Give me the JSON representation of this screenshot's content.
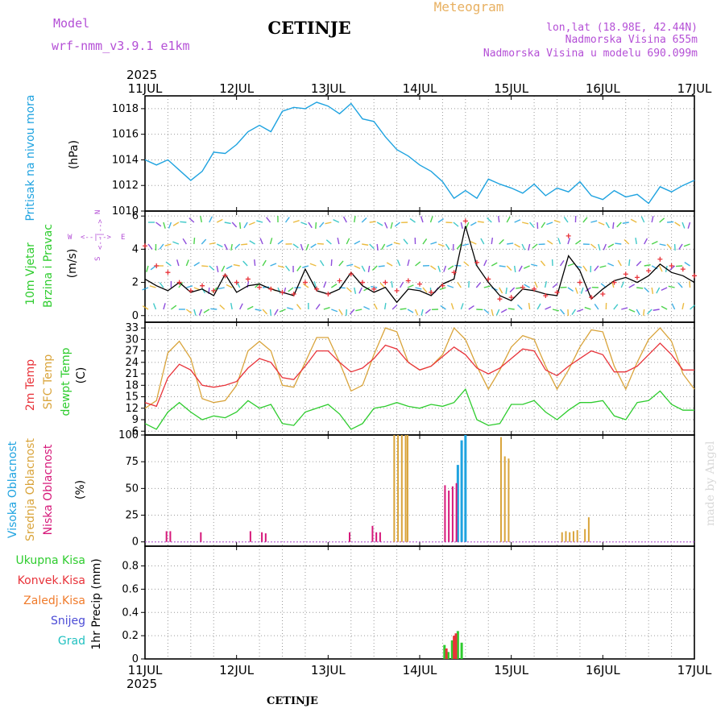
{
  "header": {
    "model_label": "Model",
    "model_name": "wrf-nmm_v3.9.1 e1km",
    "station": "CETINJE",
    "product": "Meteogram",
    "lonlat": "lon,lat (18.98E, 42.44N)",
    "elevation": "Nadmorska Visina 655m",
    "model_elevation": "Nadmorska Visina u modelu 690.099m",
    "footer_station": "CETINJE",
    "watermark": "made by Angel"
  },
  "time_axis": {
    "year": "2025",
    "ticks": [
      "11JUL",
      "12JUL",
      "13JUL",
      "14JUL",
      "15JUL",
      "16JUL",
      "17JUL"
    ]
  },
  "colors": {
    "pressure": "#1fa3e0",
    "wind_speed": "#000000",
    "gust": "#e8333a",
    "temp2m": "#e8333a",
    "sfc_temp": "#d9a43b",
    "dewpt": "#2ecc2e",
    "cloud_high": "#1fa3e0",
    "cloud_mid": "#d9a43b",
    "cloud_low": "#d6187a",
    "precip_total": "#2ecc2e",
    "precip_conv": "#e8333a",
    "precip_grid": "#f07b2b",
    "snow": "#4b4bd6",
    "graupel": "#20c0c0",
    "header_purple": "#b44fd6",
    "header_orange": "#e8b060"
  },
  "panels": {
    "pressure": {
      "label": "Pritisak na nivou mora",
      "unit": "(hPa)",
      "yticks": [
        "1010",
        "1012",
        "1014",
        "1016",
        "1018"
      ]
    },
    "wind": {
      "label1": "10m Vjetar",
      "label2": "Brzina i Pravac",
      "unit": "(m/s)",
      "yticks": [
        "0",
        "2",
        "4",
        "6"
      ],
      "compass": {
        "w": "W",
        "e": "E",
        "n": "N",
        "s": "S",
        "arrow_h": "<--|-->",
        "arrow_v": "<--|-->"
      }
    },
    "temp": {
      "label1": "2m Temp",
      "label2": "SFC Temp",
      "label3": "dewpt Temp",
      "unit": "(C)",
      "yticks": [
        "6",
        "9",
        "12",
        "15",
        "18",
        "21",
        "24",
        "27",
        "30",
        "33"
      ]
    },
    "cloud": {
      "label1": "Visoka Oblacnost",
      "label2": "Srednja Oblacnost",
      "label3": "Niska Oblacnost",
      "unit": "(%)",
      "yticks": [
        "0",
        "25",
        "50",
        "75",
        "100"
      ]
    },
    "precip": {
      "label": "1hr Precip (mm)",
      "yticks": [
        "0",
        "0.2",
        "0.4",
        "0.6",
        "0.8"
      ],
      "legend": [
        "Ukupna Kisa",
        "Konvek.Kisa",
        "Zaledj.Kisa",
        "Snijeg",
        "Grad"
      ]
    }
  },
  "chart_data": [
    {
      "type": "line",
      "title": "Pritisak na nivou mora",
      "ylabel": "(hPa)",
      "ylim": [
        1010,
        1019
      ],
      "x_hours": [
        0,
        3,
        6,
        9,
        12,
        15,
        18,
        21,
        24,
        27,
        30,
        33,
        36,
        39,
        42,
        45,
        48,
        51,
        54,
        57,
        60,
        63,
        66,
        69,
        72,
        75,
        78,
        81,
        84,
        87,
        90,
        93,
        96,
        99,
        102,
        105,
        108,
        111,
        114,
        117,
        120,
        123,
        126,
        129,
        132,
        135,
        138,
        141,
        144
      ],
      "series": [
        {
          "name": "pressure",
          "values": [
            1014.0,
            1013.6,
            1014.0,
            1013.2,
            1012.4,
            1013.1,
            1014.6,
            1014.5,
            1015.2,
            1016.2,
            1016.7,
            1016.2,
            1017.8,
            1018.1,
            1018.0,
            1018.5,
            1018.2,
            1017.6,
            1018.4,
            1017.2,
            1017.0,
            1015.8,
            1014.8,
            1014.3,
            1013.6,
            1013.1,
            1012.3,
            1011.0,
            1011.6,
            1011.0,
            1012.5,
            1012.1,
            1011.8,
            1011.4,
            1012.1,
            1011.2,
            1011.8,
            1011.5,
            1012.3,
            1011.2,
            1010.9,
            1011.6,
            1011.1,
            1011.3,
            1010.6,
            1011.9,
            1011.5,
            1012.0,
            1012.4
          ]
        }
      ]
    },
    {
      "type": "line",
      "title": "10m Vjetar",
      "ylabel": "(m/s)",
      "ylim": [
        -0.4,
        6.3
      ],
      "x_hours": [
        0,
        3,
        6,
        9,
        12,
        15,
        18,
        21,
        24,
        27,
        30,
        33,
        36,
        39,
        42,
        45,
        48,
        51,
        54,
        57,
        60,
        63,
        66,
        69,
        72,
        75,
        78,
        81,
        84,
        87,
        90,
        93,
        96,
        99,
        102,
        105,
        108,
        111,
        114,
        117,
        120,
        123,
        126,
        129,
        132,
        135,
        138,
        141,
        144
      ],
      "series": [
        {
          "name": "speed",
          "values": [
            2.2,
            1.8,
            1.5,
            2.0,
            1.4,
            1.6,
            1.2,
            2.5,
            1.4,
            1.8,
            1.9,
            1.6,
            1.4,
            1.2,
            2.8,
            1.5,
            1.3,
            1.6,
            2.6,
            1.8,
            1.4,
            1.7,
            0.8,
            1.6,
            1.5,
            1.2,
            1.9,
            2.2,
            5.4,
            3.0,
            2.0,
            1.2,
            0.9,
            1.6,
            1.5,
            1.3,
            1.2,
            3.6,
            2.7,
            1.0,
            1.6,
            2.1,
            2.3,
            2.0,
            2.4,
            3.1,
            2.6,
            2.4,
            2.0
          ]
        },
        {
          "name": "gust",
          "values": [
            4.2,
            3.0,
            2.6,
            2.0,
            1.5,
            1.8,
            1.5,
            2.4,
            2.0,
            2.2,
            1.7,
            1.6,
            1.4,
            1.3,
            2.0,
            1.6,
            1.3,
            2.1,
            2.5,
            2.0,
            1.6,
            2.0,
            1.5,
            2.1,
            1.9,
            1.4,
            1.8,
            2.6,
            5.7,
            3.2,
            2.2,
            1.0,
            1.1,
            1.7,
            1.6,
            1.2,
            1.4,
            4.8,
            2.0,
            1.1,
            1.3,
            2.0,
            2.5,
            2.3,
            2.7,
            3.4,
            3.0,
            2.8,
            2.4
          ]
        }
      ]
    },
    {
      "type": "line",
      "title": "Temp",
      "ylabel": "(C)",
      "ylim": [
        5,
        34.5
      ],
      "x_hours": [
        0,
        3,
        6,
        9,
        12,
        15,
        18,
        21,
        24,
        27,
        30,
        33,
        36,
        39,
        42,
        45,
        48,
        51,
        54,
        57,
        60,
        63,
        66,
        69,
        72,
        75,
        78,
        81,
        84,
        87,
        90,
        93,
        96,
        99,
        102,
        105,
        108,
        111,
        114,
        117,
        120,
        123,
        126,
        129,
        132,
        135,
        138,
        141,
        144
      ],
      "series": [
        {
          "name": "2m Temp",
          "values": [
            13.5,
            12.5,
            20.0,
            23.5,
            22.0,
            18.0,
            17.5,
            18.0,
            19.0,
            22.5,
            25.0,
            24.0,
            20.0,
            19.5,
            23.0,
            27.0,
            27.0,
            24.0,
            21.5,
            22.5,
            25.0,
            28.5,
            27.5,
            24.0,
            22.0,
            23.0,
            25.5,
            28.0,
            26.0,
            22.5,
            21.0,
            22.5,
            25.0,
            27.5,
            27.0,
            22.0,
            20.5,
            23.0,
            25.0,
            27.0,
            26.0,
            21.5,
            21.5,
            23.0,
            26.0,
            29.0,
            26.0,
            22.0,
            22.0
          ]
        },
        {
          "name": "SFC Temp",
          "values": [
            12.0,
            14.0,
            26.5,
            29.5,
            25.0,
            14.5,
            13.5,
            14.0,
            18.0,
            27.0,
            29.5,
            27.0,
            18.0,
            17.5,
            24.0,
            30.5,
            30.5,
            24.0,
            16.5,
            18.0,
            26.0,
            33.0,
            32.0,
            24.0,
            22.0,
            23.0,
            26.0,
            33.0,
            30.0,
            23.0,
            17.0,
            22.0,
            28.0,
            31.0,
            30.0,
            23.0,
            17.0,
            22.0,
            28.0,
            32.5,
            32.0,
            23.0,
            17.0,
            24.0,
            30.0,
            33.0,
            29.5,
            21.0,
            17.0
          ]
        },
        {
          "name": "dewpt Temp",
          "values": [
            8.0,
            6.5,
            11.0,
            13.5,
            11.0,
            9.0,
            10.0,
            9.5,
            11.0,
            14.0,
            12.0,
            13.0,
            8.0,
            7.5,
            11.0,
            12.0,
            13.0,
            10.5,
            6.5,
            8.0,
            12.0,
            12.5,
            13.5,
            12.5,
            12.0,
            13.0,
            12.5,
            13.5,
            17.0,
            9.0,
            7.5,
            8.0,
            13.0,
            13.0,
            14.0,
            11.0,
            9.0,
            11.5,
            13.5,
            13.5,
            14.0,
            10.0,
            9.0,
            13.5,
            14.0,
            16.5,
            13.0,
            11.5,
            11.5
          ]
        }
      ]
    },
    {
      "type": "bar",
      "title": "Oblacnost",
      "ylabel": "(%)",
      "ylim": [
        -4,
        100
      ],
      "series": [
        {
          "name": "Visoka Oblacnost",
          "x_hours": [
            82,
            83,
            84
          ],
          "values": [
            72,
            95,
            100
          ]
        },
        {
          "name": "Srednja Oblacnost",
          "x_hours": [
            65,
            66,
            67,
            68,
            68.5,
            93,
            94,
            95,
            109,
            110,
            111,
            112,
            113,
            115,
            116
          ],
          "values": [
            100,
            100,
            100,
            100,
            100,
            98,
            80,
            78,
            9,
            10,
            9,
            10,
            11,
            12,
            23
          ]
        },
        {
          "name": "Niska Oblacnost",
          "x_hours": [
            5,
            6,
            14,
            27,
            30,
            31,
            53,
            59,
            60,
            61,
            78,
            79,
            80,
            81
          ],
          "values": [
            10,
            10,
            9,
            10,
            9,
            8,
            9,
            15,
            9,
            9,
            53,
            48,
            52,
            55
          ]
        }
      ]
    },
    {
      "type": "bar",
      "title": "1hr Precip",
      "ylabel": "(mm)",
      "ylim": [
        0,
        0.97
      ],
      "series": [
        {
          "name": "Ukupna Kisa",
          "x_hours": [
            78.5,
            79.5,
            80.5,
            82,
            83
          ],
          "values": [
            0.12,
            0.06,
            0.16,
            0.24,
            0.14
          ]
        },
        {
          "name": "Konvek.Kisa",
          "x_hours": [
            79,
            81,
            81.5
          ],
          "values": [
            0.09,
            0.2,
            0.22
          ]
        },
        {
          "name": "Zaledj.Kisa",
          "x_hours": [],
          "values": []
        },
        {
          "name": "Snijeg",
          "x_hours": [],
          "values": []
        },
        {
          "name": "Grad",
          "x_hours": [],
          "values": []
        }
      ]
    }
  ]
}
